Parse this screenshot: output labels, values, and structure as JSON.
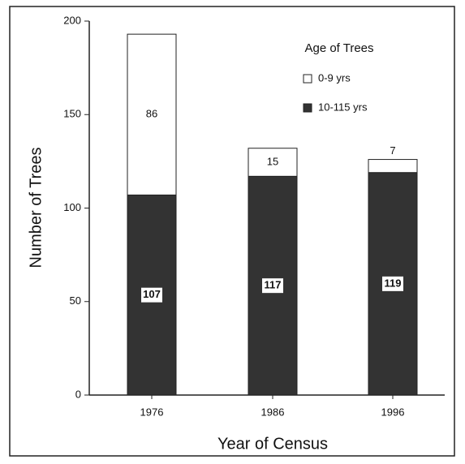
{
  "chart_data": {
    "type": "stacked_bar",
    "x_label": "Year of Census",
    "y_label": "Number of Trees",
    "legend_title": "Age of Trees",
    "categories": [
      "1976",
      "1986",
      "1996"
    ],
    "series": [
      {
        "name": "10-115 yrs",
        "color": "#333333",
        "values": [
          107,
          117,
          119
        ]
      },
      {
        "name": "0-9 yrs",
        "color": "#ffffff",
        "values": [
          86,
          15,
          7
        ]
      }
    ],
    "ylim": [
      0,
      200
    ],
    "yticks": [
      0,
      50,
      100,
      150,
      200
    ],
    "legend": "upper right"
  }
}
